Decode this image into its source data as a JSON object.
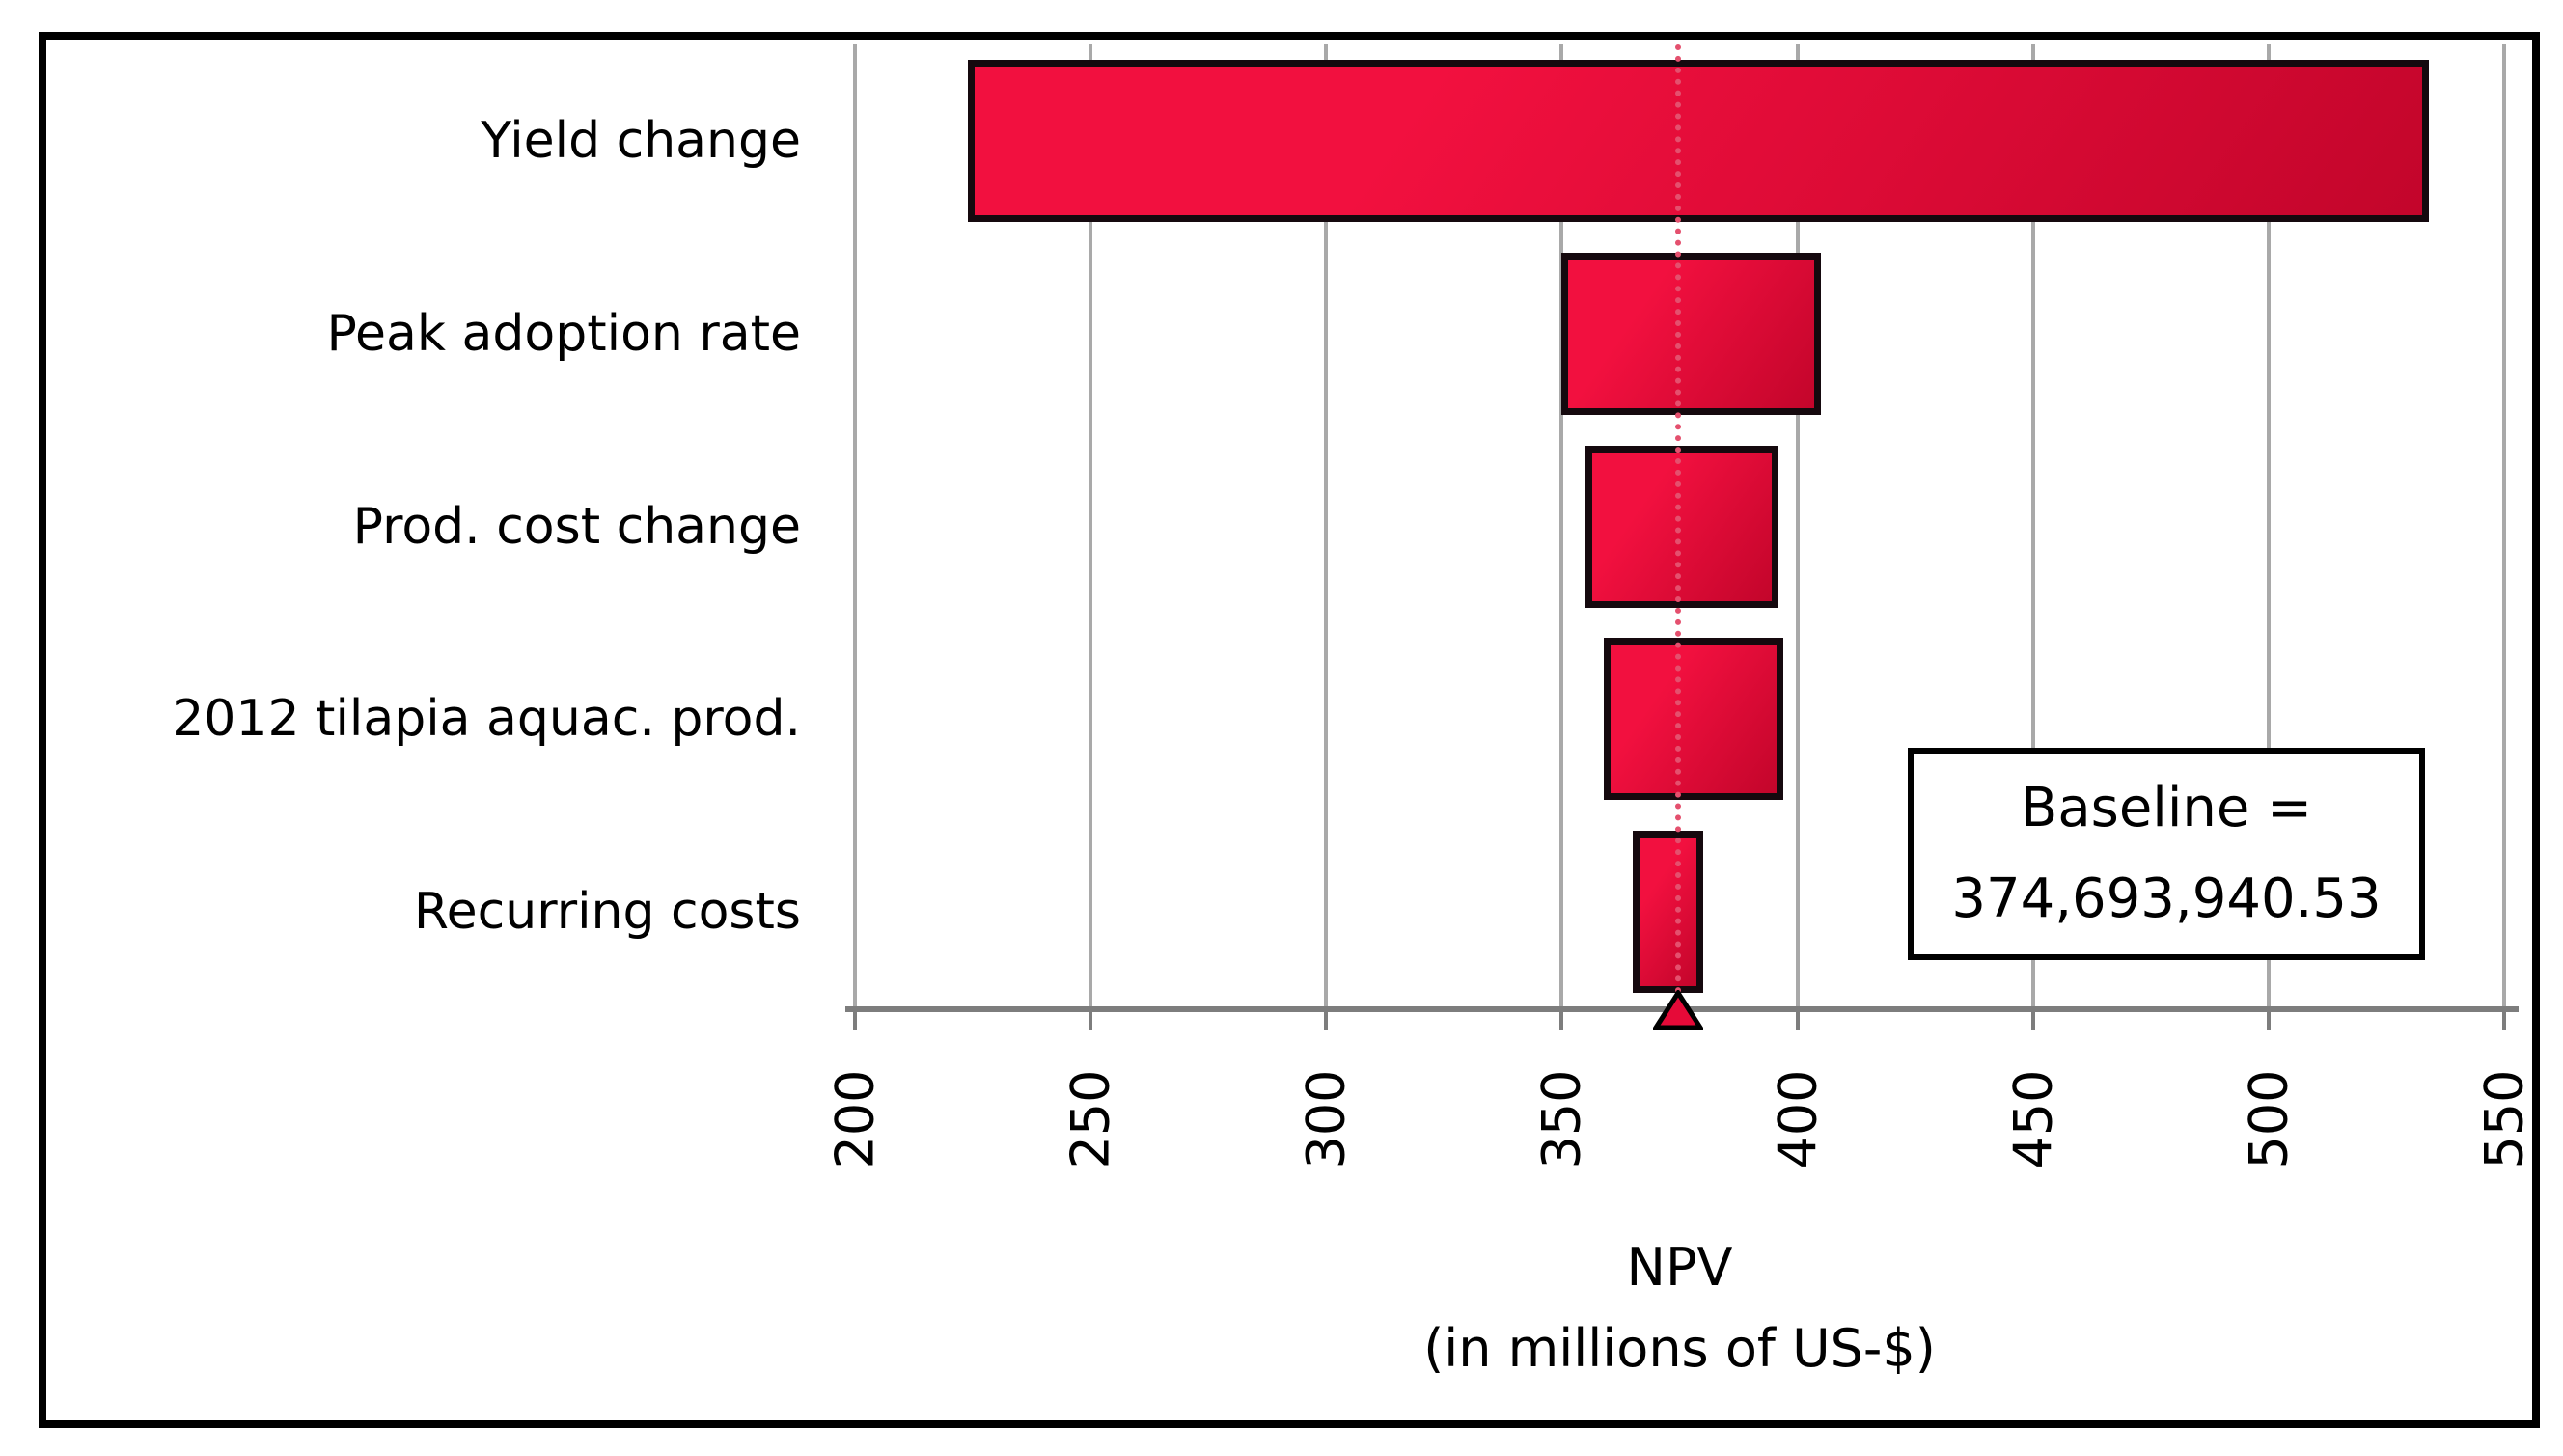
{
  "chart_data": {
    "type": "bar",
    "subtype": "tornado-sensitivity",
    "orientation": "horizontal",
    "title": "",
    "xlabel_lines": [
      "NPV",
      "(in millions of US-$)"
    ],
    "xlim": [
      200,
      550
    ],
    "x_ticks": [
      200,
      250,
      300,
      350,
      400,
      450,
      500,
      550
    ],
    "grid": "vertical-gridlines-on",
    "legend": "none",
    "categories": [
      "Yield change",
      "Peak adoption rate",
      "Prod. cost change",
      "2012 tilapia aquac. prod.",
      "Recurring costs"
    ],
    "series": [
      {
        "name": "NPV range (millions of US-$)",
        "ranges": [
          [
            224,
            534
          ],
          [
            350,
            405
          ],
          [
            355,
            396
          ],
          [
            359,
            397
          ],
          [
            365,
            380
          ]
        ]
      }
    ],
    "baseline": {
      "value_millions": 374.69394053,
      "marker": "triangle-up-icon"
    },
    "annotation_box": {
      "line1": "Baseline =",
      "line2": "374,693,940.53"
    },
    "colors": {
      "bar_fill_light": "#f2103f",
      "bar_fill_dark": "#c3052b",
      "bar_border": "#15090e",
      "gridline": "#a9a9a9",
      "axis_line": "#7d7d7d",
      "baseline_dash": "#e4506e",
      "triangle_fill": "#e60a38",
      "figure_border": "#000000",
      "background": "#ffffff",
      "text": "#000000"
    }
  }
}
